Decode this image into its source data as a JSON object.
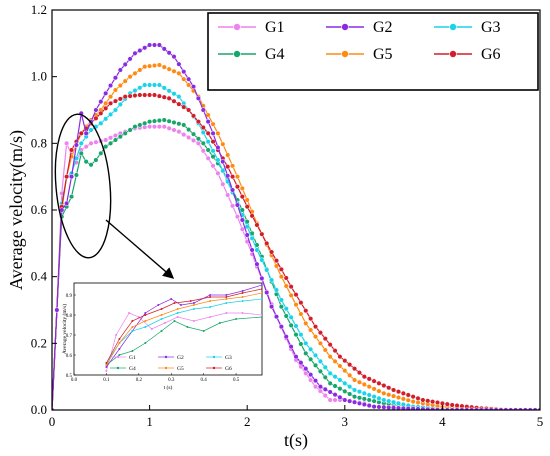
{
  "chart_data": {
    "type": "line",
    "xlabel": "t(s)",
    "ylabel": "Average velocity(m/s)",
    "xlim": [
      0,
      5
    ],
    "ylim": [
      0,
      1.2
    ],
    "x_ticks": [
      0,
      1,
      2,
      3,
      4,
      5
    ],
    "y_ticks": [
      0.0,
      0.2,
      0.4,
      0.6,
      0.8,
      1.0,
      1.2
    ],
    "x_tick_labels": [
      "0",
      "1",
      "2",
      "3",
      "4",
      "5"
    ],
    "y_tick_labels": [
      "0.0",
      "0.2",
      "0.4",
      "0.6",
      "0.8",
      "1.0",
      "1.2"
    ],
    "legend_position": "top-right",
    "series": [
      {
        "name": "G1",
        "color": "#ee82ee",
        "marker": "circle",
        "points": [
          [
            0,
            0
          ],
          [
            0.05,
            0.3
          ],
          [
            0.1,
            0.65
          ],
          [
            0.15,
            0.8
          ],
          [
            0.18,
            0.81
          ],
          [
            0.22,
            0.72
          ],
          [
            0.3,
            0.78
          ],
          [
            0.4,
            0.8
          ],
          [
            0.55,
            0.81
          ],
          [
            0.7,
            0.83
          ],
          [
            0.85,
            0.845
          ],
          [
            1.0,
            0.85
          ],
          [
            1.15,
            0.85
          ],
          [
            1.3,
            0.835
          ],
          [
            1.5,
            0.8
          ],
          [
            1.7,
            0.71
          ],
          [
            1.9,
            0.58
          ],
          [
            2.1,
            0.43
          ],
          [
            2.3,
            0.28
          ],
          [
            2.5,
            0.15
          ],
          [
            2.7,
            0.07
          ],
          [
            2.85,
            0.03
          ],
          [
            3.0,
            0.03
          ],
          [
            3.2,
            0.02
          ],
          [
            3.3,
            0.01
          ],
          [
            3.5,
            0.005
          ],
          [
            4.0,
            0.0
          ],
          [
            5.0,
            0.0
          ]
        ]
      },
      {
        "name": "G2",
        "color": "#8a2be2",
        "marker": "circle",
        "points": [
          [
            0,
            0
          ],
          [
            0.05,
            0.3
          ],
          [
            0.1,
            0.6
          ],
          [
            0.15,
            0.62
          ],
          [
            0.2,
            0.7
          ],
          [
            0.3,
            0.89
          ],
          [
            0.35,
            0.83
          ],
          [
            0.45,
            0.9
          ],
          [
            0.55,
            0.95
          ],
          [
            0.7,
            1.02
          ],
          [
            0.85,
            1.07
          ],
          [
            1.0,
            1.095
          ],
          [
            1.1,
            1.095
          ],
          [
            1.25,
            1.06
          ],
          [
            1.45,
            0.97
          ],
          [
            1.65,
            0.83
          ],
          [
            1.85,
            0.66
          ],
          [
            2.05,
            0.48
          ],
          [
            2.25,
            0.31
          ],
          [
            2.5,
            0.16
          ],
          [
            2.75,
            0.07
          ],
          [
            3.0,
            0.03
          ],
          [
            3.3,
            0.01
          ],
          [
            3.6,
            0.005
          ],
          [
            4.0,
            0.0
          ],
          [
            5.0,
            0.0
          ]
        ]
      },
      {
        "name": "G3",
        "color": "#19d3e8",
        "marker": "circle",
        "points": [
          [
            0,
            0
          ],
          [
            0.05,
            0.3
          ],
          [
            0.1,
            0.62
          ],
          [
            0.15,
            0.7
          ],
          [
            0.2,
            0.71
          ],
          [
            0.3,
            0.8
          ],
          [
            0.4,
            0.84
          ],
          [
            0.5,
            0.86
          ],
          [
            0.65,
            0.9
          ],
          [
            0.8,
            0.95
          ],
          [
            0.95,
            0.975
          ],
          [
            1.1,
            0.975
          ],
          [
            1.3,
            0.94
          ],
          [
            1.5,
            0.86
          ],
          [
            1.7,
            0.75
          ],
          [
            1.9,
            0.62
          ],
          [
            2.1,
            0.48
          ],
          [
            2.35,
            0.33
          ],
          [
            2.6,
            0.2
          ],
          [
            2.85,
            0.11
          ],
          [
            3.1,
            0.06
          ],
          [
            3.4,
            0.03
          ],
          [
            3.7,
            0.01
          ],
          [
            4.0,
            0.005
          ],
          [
            4.5,
            0.0
          ],
          [
            5.0,
            0.0
          ]
        ]
      },
      {
        "name": "G4",
        "color": "#16a56a",
        "marker": "circle",
        "points": [
          [
            0,
            0
          ],
          [
            0.05,
            0.3
          ],
          [
            0.1,
            0.58
          ],
          [
            0.15,
            0.61
          ],
          [
            0.2,
            0.64
          ],
          [
            0.3,
            0.77
          ],
          [
            0.38,
            0.73
          ],
          [
            0.45,
            0.75
          ],
          [
            0.55,
            0.79
          ],
          [
            0.7,
            0.82
          ],
          [
            0.85,
            0.85
          ],
          [
            1.0,
            0.865
          ],
          [
            1.15,
            0.87
          ],
          [
            1.35,
            0.855
          ],
          [
            1.55,
            0.8
          ],
          [
            1.75,
            0.72
          ],
          [
            1.95,
            0.6
          ],
          [
            2.15,
            0.46
          ],
          [
            2.35,
            0.31
          ],
          [
            2.6,
            0.17
          ],
          [
            2.85,
            0.08
          ],
          [
            3.1,
            0.04
          ],
          [
            3.4,
            0.02
          ],
          [
            3.7,
            0.01
          ],
          [
            4.0,
            0.0
          ],
          [
            5.0,
            0.0
          ]
        ]
      },
      {
        "name": "G5",
        "color": "#ff8a12",
        "marker": "circle",
        "points": [
          [
            0,
            0
          ],
          [
            0.05,
            0.3
          ],
          [
            0.1,
            0.6
          ],
          [
            0.15,
            0.7
          ],
          [
            0.2,
            0.76
          ],
          [
            0.3,
            0.83
          ],
          [
            0.4,
            0.87
          ],
          [
            0.5,
            0.9
          ],
          [
            0.65,
            0.96
          ],
          [
            0.8,
            1.0
          ],
          [
            0.95,
            1.03
          ],
          [
            1.1,
            1.035
          ],
          [
            1.3,
            1.01
          ],
          [
            1.5,
            0.94
          ],
          [
            1.7,
            0.83
          ],
          [
            1.9,
            0.7
          ],
          [
            2.1,
            0.56
          ],
          [
            2.35,
            0.4
          ],
          [
            2.6,
            0.26
          ],
          [
            2.85,
            0.16
          ],
          [
            3.1,
            0.09
          ],
          [
            3.4,
            0.05
          ],
          [
            3.7,
            0.025
          ],
          [
            4.0,
            0.01
          ],
          [
            4.3,
            0.003
          ],
          [
            4.6,
            0.0
          ],
          [
            5.0,
            0.0
          ]
        ]
      },
      {
        "name": "G6",
        "color": "#d21d2a",
        "marker": "circle",
        "points": [
          [
            0,
            0
          ],
          [
            0.05,
            0.3
          ],
          [
            0.1,
            0.61
          ],
          [
            0.15,
            0.7
          ],
          [
            0.2,
            0.78
          ],
          [
            0.3,
            0.83
          ],
          [
            0.4,
            0.86
          ],
          [
            0.5,
            0.89
          ],
          [
            0.6,
            0.92
          ],
          [
            0.75,
            0.94
          ],
          [
            0.9,
            0.945
          ],
          [
            1.05,
            0.945
          ],
          [
            1.2,
            0.935
          ],
          [
            1.4,
            0.9
          ],
          [
            1.6,
            0.83
          ],
          [
            1.8,
            0.73
          ],
          [
            2.0,
            0.61
          ],
          [
            2.2,
            0.5
          ],
          [
            2.45,
            0.37
          ],
          [
            2.7,
            0.25
          ],
          [
            2.95,
            0.16
          ],
          [
            3.2,
            0.1
          ],
          [
            3.5,
            0.06
          ],
          [
            3.8,
            0.03
          ],
          [
            4.1,
            0.015
          ],
          [
            4.4,
            0.005
          ],
          [
            4.7,
            0.0
          ],
          [
            5.0,
            0.0
          ]
        ]
      }
    ],
    "inset": {
      "xlabel": "t (s)",
      "ylabel": "Average velocity (m/s)",
      "xlim": [
        0,
        0.58
      ],
      "ylim": [
        0.5,
        0.96
      ],
      "x_ticks": [
        0.0,
        0.1,
        0.2,
        0.3,
        0.4,
        0.5
      ],
      "y_ticks": [
        0.5,
        0.6,
        0.7,
        0.8,
        0.9
      ],
      "x_tick_labels": [
        "0.0",
        "0.1",
        "0.2",
        "0.3",
        "0.4",
        "0.5"
      ],
      "y_tick_labels": [
        "0.5",
        "0.6",
        "0.7",
        "0.8",
        "0.9"
      ],
      "series": [
        {
          "name": "G1",
          "color": "#ee82ee",
          "points": [
            [
              0.1,
              0.52
            ],
            [
              0.13,
              0.7
            ],
            [
              0.17,
              0.81
            ],
            [
              0.2,
              0.79
            ],
            [
              0.24,
              0.73
            ],
            [
              0.28,
              0.76
            ],
            [
              0.32,
              0.79
            ],
            [
              0.37,
              0.77
            ],
            [
              0.42,
              0.79
            ],
            [
              0.47,
              0.81
            ],
            [
              0.52,
              0.81
            ],
            [
              0.58,
              0.8
            ]
          ]
        },
        {
          "name": "G2",
          "color": "#8a2be2",
          "points": [
            [
              0.1,
              0.54
            ],
            [
              0.14,
              0.63
            ],
            [
              0.18,
              0.72
            ],
            [
              0.22,
              0.81
            ],
            [
              0.26,
              0.85
            ],
            [
              0.3,
              0.88
            ],
            [
              0.33,
              0.85
            ],
            [
              0.37,
              0.86
            ],
            [
              0.42,
              0.9
            ],
            [
              0.47,
              0.9
            ],
            [
              0.52,
              0.92
            ],
            [
              0.58,
              0.95
            ]
          ]
        },
        {
          "name": "G3",
          "color": "#19d3e8",
          "points": [
            [
              0.1,
              0.56
            ],
            [
              0.14,
              0.66
            ],
            [
              0.18,
              0.72
            ],
            [
              0.22,
              0.74
            ],
            [
              0.27,
              0.78
            ],
            [
              0.32,
              0.81
            ],
            [
              0.37,
              0.83
            ],
            [
              0.42,
              0.84
            ],
            [
              0.47,
              0.86
            ],
            [
              0.52,
              0.87
            ],
            [
              0.58,
              0.88
            ]
          ]
        },
        {
          "name": "G4",
          "color": "#16a56a",
          "points": [
            [
              0.1,
              0.55
            ],
            [
              0.14,
              0.6
            ],
            [
              0.18,
              0.62
            ],
            [
              0.22,
              0.66
            ],
            [
              0.27,
              0.72
            ],
            [
              0.31,
              0.77
            ],
            [
              0.35,
              0.74
            ],
            [
              0.4,
              0.72
            ],
            [
              0.45,
              0.76
            ],
            [
              0.5,
              0.78
            ],
            [
              0.58,
              0.79
            ]
          ]
        },
        {
          "name": "G5",
          "color": "#ff8a12",
          "points": [
            [
              0.1,
              0.55
            ],
            [
              0.14,
              0.66
            ],
            [
              0.18,
              0.74
            ],
            [
              0.22,
              0.77
            ],
            [
              0.27,
              0.8
            ],
            [
              0.32,
              0.83
            ],
            [
              0.37,
              0.85
            ],
            [
              0.42,
              0.87
            ],
            [
              0.47,
              0.88
            ],
            [
              0.52,
              0.89
            ],
            [
              0.58,
              0.91
            ]
          ]
        },
        {
          "name": "G6",
          "color": "#d21d2a",
          "points": [
            [
              0.1,
              0.56
            ],
            [
              0.14,
              0.68
            ],
            [
              0.18,
              0.77
            ],
            [
              0.22,
              0.8
            ],
            [
              0.27,
              0.83
            ],
            [
              0.31,
              0.86
            ],
            [
              0.36,
              0.87
            ],
            [
              0.42,
              0.89
            ],
            [
              0.47,
              0.89
            ],
            [
              0.52,
              0.91
            ],
            [
              0.58,
              0.93
            ]
          ]
        }
      ]
    }
  }
}
